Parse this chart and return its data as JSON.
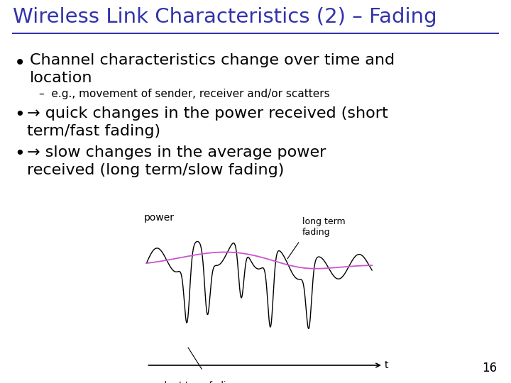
{
  "title": "Wireless Link Characteristics (2) – Fading",
  "title_color": "#3333aa",
  "title_fontsize": 21,
  "bg_color": "#ffffff",
  "bullet1_line1": "Channel characteristics change over time and",
  "bullet1_line2": "location",
  "sub_bullet": "–  e.g., movement of sender, receiver and/or scatters",
  "bullet2_line1": "→ quick changes in the power received (short",
  "bullet2_line2": "term/fast fading)",
  "bullet3_line1": "→ slow changes in the average power",
  "bullet3_line2": "received (long term/slow fading)",
  "diagram_xlabel": "t",
  "diagram_ylabel": "power",
  "short_term_label": "short term fading",
  "long_term_label": "long term\nfading",
  "page_number": "16",
  "text_color": "#000000",
  "short_term_color": "#000000",
  "long_term_color": "#cc55cc",
  "bullet_fontsize": 16,
  "sub_bullet_fontsize": 11,
  "diagram_fontsize": 10
}
